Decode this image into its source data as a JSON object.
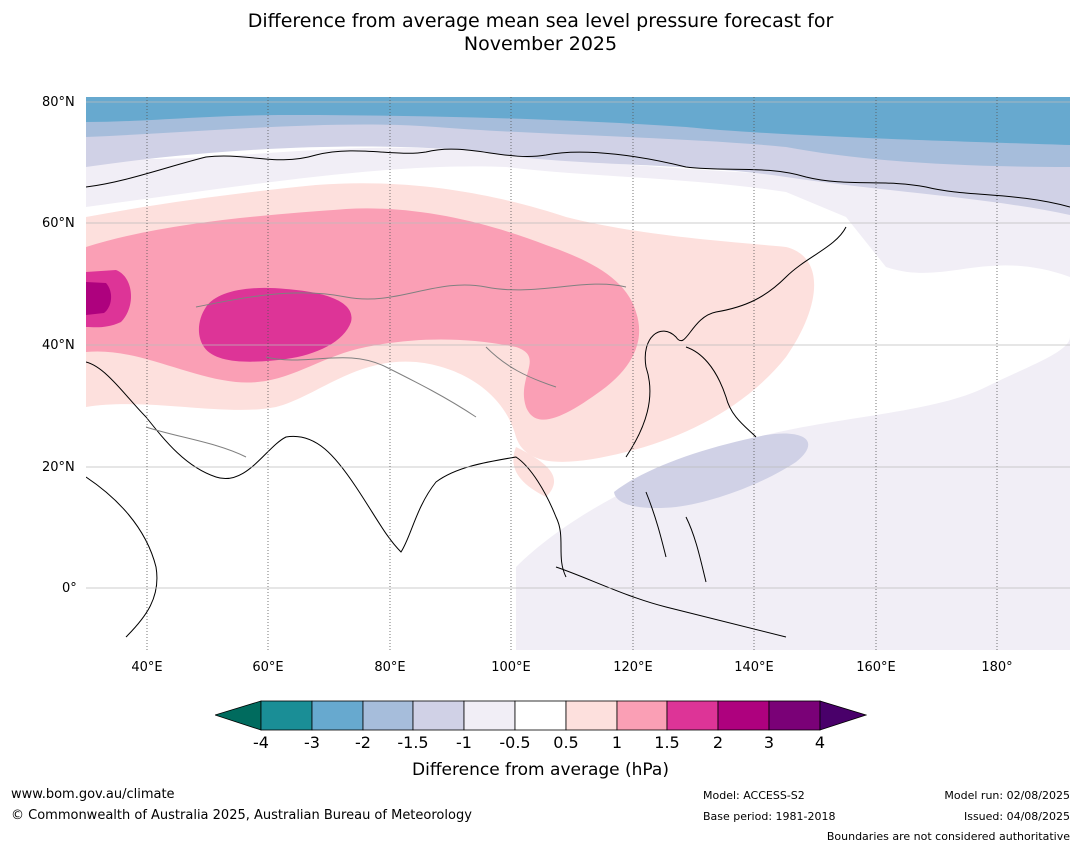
{
  "title": {
    "line1": "Difference from average mean sea level pressure forecast for",
    "line2": "November 2025"
  },
  "axes": {
    "lat_labels": [
      "80°N",
      "60°N",
      "40°N",
      "20°N",
      "0°"
    ],
    "lon_labels": [
      "40°E",
      "60°E",
      "80°E",
      "100°E",
      "120°E",
      "140°E",
      "160°E",
      "180°"
    ]
  },
  "colorbar": {
    "label": "Difference from average (hPa)",
    "ticks": [
      "-4",
      "-3",
      "-2",
      "-1.5",
      "-1",
      "-0.5",
      "0.5",
      "1",
      "1.5",
      "2",
      "3",
      "4"
    ],
    "colors": {
      "below_-4": "#006b5e",
      "-4_-3": "#1a8e96",
      "-3_-2": "#67a9cf",
      "-2_-1.5": "#a6bddb",
      "-1.5_-1": "#d0d1e6",
      "-1_-0.5": "#f1eef6",
      "-0.5_0.5": "#ffffff",
      "0.5_1": "#fde0dd",
      "1_1.5": "#fa9fb5",
      "1.5_2": "#dd3497",
      "2_3": "#ae017e",
      "3_4": "#7a0177",
      "above_4": "#49006a"
    }
  },
  "footer": {
    "url": "www.bom.gov.au/climate",
    "copyright": "© Commonwealth of Australia 2025, Australian Bureau of Meteorology",
    "model": "Model: ACCESS-S2",
    "base_period": "Base period: 1981-2018",
    "model_run": "Model run: 02/08/2025",
    "issued": "Issued: 04/08/2025",
    "disclaimer": "Boundaries are not considered authoritative"
  }
}
